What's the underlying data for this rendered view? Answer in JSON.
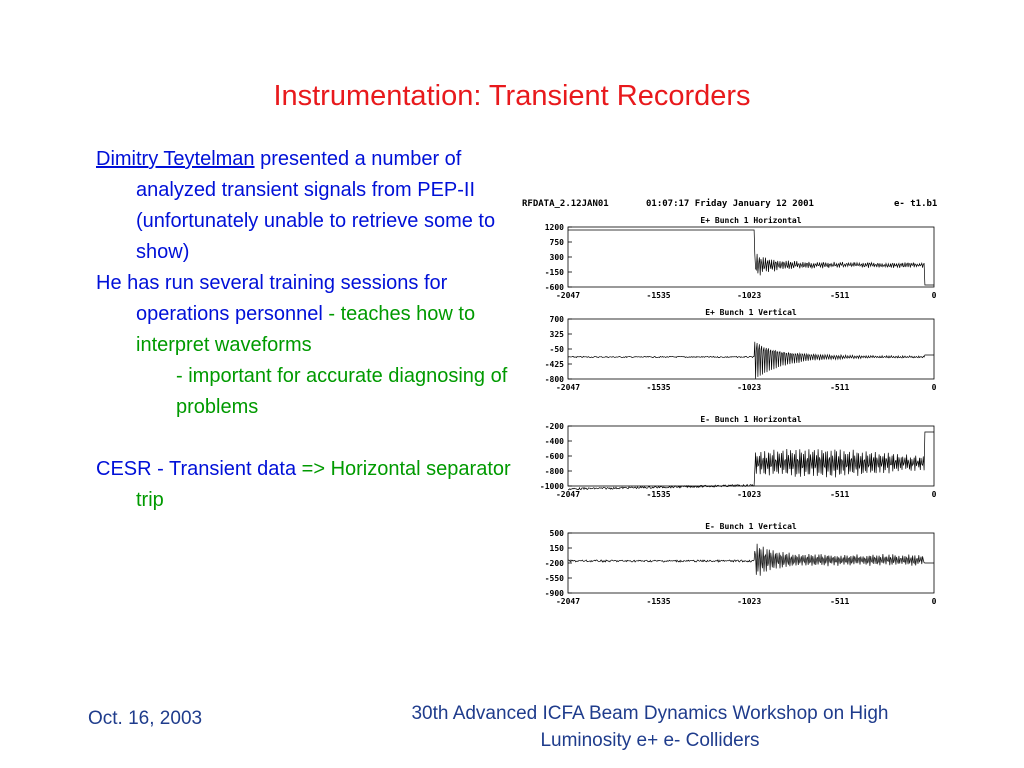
{
  "slide": {
    "title": "Instrumentation: Transient Recorders",
    "colors": {
      "title": "#e8191c",
      "blue": "#0010d8",
      "green": "#009a00",
      "footer": "#1f3c8c"
    }
  },
  "bullets": [
    {
      "link": "Dimitry Teytelman",
      "text": " presented a number of analyzed transient signals from PEP-II",
      "sub": "(unfortunately unable to retrieve some to show)"
    },
    {
      "text_a": "He has run several training sessions for operations personnel",
      "text_b": " - teaches how to interpret waveforms",
      "text_c": "- important for accurate diagnosing of problems"
    },
    {
      "text_a": "CESR - Transient data",
      "text_b": " => Horizontal separator trip"
    }
  ],
  "scope": {
    "header_left": "RFDATA_2.12JAN01",
    "header_mid": "01:07:17 Friday January 12 2001",
    "header_right": "e- t1.b1",
    "x_ticks": [
      "-2047",
      "-1535",
      "-1023",
      "-511",
      "0"
    ],
    "panels": [
      {
        "title": "E+ Bunch 1 Horizontal",
        "y_ticks": [
          "1200",
          "750",
          "300",
          "-150",
          "-600"
        ]
      },
      {
        "title": "E+ Bunch 1 Vertical",
        "y_ticks": [
          "700",
          "325",
          "-50",
          "-425",
          "-800"
        ]
      },
      {
        "title": "E- Bunch 1 Horizontal",
        "y_ticks": [
          "-200",
          "-400",
          "-600",
          "-800",
          "-1000"
        ]
      },
      {
        "title": "E- Bunch 1 Vertical",
        "y_ticks": [
          "500",
          "150",
          "-200",
          "-550",
          "-900"
        ]
      }
    ]
  },
  "footer": {
    "date": "Oct. 16, 2003",
    "conference_line1": "30th Advanced ICFA Beam Dynamics Workshop on High",
    "conference_line2": "Luminosity e+ e- Colliders"
  }
}
